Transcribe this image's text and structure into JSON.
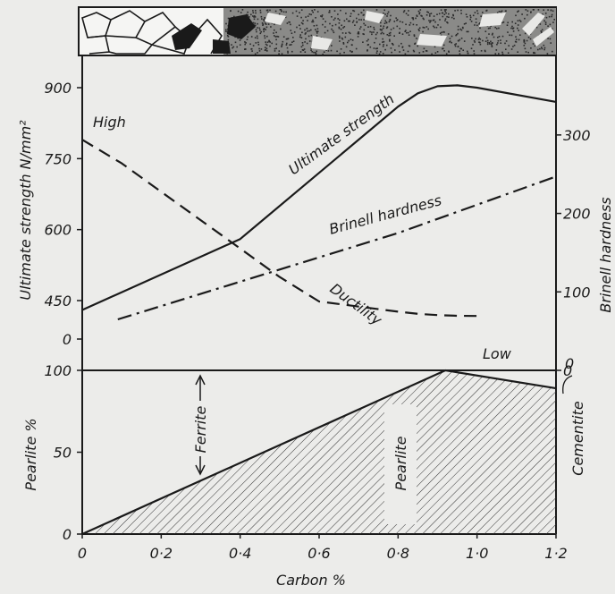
{
  "chart_data": [
    {
      "type": "line",
      "title": "",
      "xlabel": "Carbon %",
      "xlim": [
        0,
        1.2
      ],
      "x_ticks": [
        "0",
        "0·2",
        "0·4",
        "0·6",
        "0·8",
        "1·0",
        "1·2"
      ],
      "ylabel": "Ultimate strength N/mm²",
      "ylim": [
        0,
        900
      ],
      "y_ticks": [
        "0",
        "450",
        "600",
        "750",
        "900"
      ],
      "y2label": "Brinell hardness",
      "y2lim": [
        0,
        350
      ],
      "y2_ticks": [
        "0",
        "100",
        "200",
        "300"
      ],
      "series": [
        {
          "name": "Ultimate strength",
          "style": "solid",
          "axis": "left",
          "points": [
            [
              0.0,
              340
            ],
            [
              0.4,
              580
            ],
            [
              0.8,
              860
            ],
            [
              0.85,
              888
            ],
            [
              0.9,
              903
            ],
            [
              0.95,
              905
            ],
            [
              1.0,
              900
            ],
            [
              1.2,
              870
            ]
          ]
        },
        {
          "name": "Brinell hardness",
          "style": "dash-dot",
          "axis": "right",
          "points": [
            [
              0.09,
              65
            ],
            [
              0.4,
              113
            ],
            [
              0.8,
              175
            ],
            [
              1.2,
              247
            ]
          ]
        },
        {
          "name": "Ductility",
          "style": "dashed",
          "axis": "left",
          "points": [
            [
              0.0,
              790
            ],
            [
              0.1,
              740
            ],
            [
              0.2,
              680
            ],
            [
              0.3,
              620
            ],
            [
              0.4,
              560
            ],
            [
              0.5,
              500
            ],
            [
              0.6,
              440
            ],
            [
              0.7,
              380
            ],
            [
              0.8,
              320
            ],
            [
              0.85,
              295
            ],
            [
              0.9,
              280
            ],
            [
              0.95,
              272
            ],
            [
              1.0,
              270
            ]
          ]
        }
      ],
      "annotations": [
        "High",
        "Low"
      ]
    },
    {
      "type": "area",
      "title": "",
      "xlabel": "Carbon %",
      "xlim": [
        0,
        1.2
      ],
      "ylabel": "Pearlite %",
      "ylim": [
        0,
        100
      ],
      "y_ticks": [
        "0",
        "50",
        "100"
      ],
      "series": [
        {
          "name": "Pearlite",
          "points": [
            [
              0.0,
              0
            ],
            [
              0.92,
              100
            ],
            [
              1.2,
              89
            ]
          ]
        }
      ],
      "region_labels": [
        "Ferrite",
        "Pearlite",
        "Cementite"
      ]
    }
  ]
}
